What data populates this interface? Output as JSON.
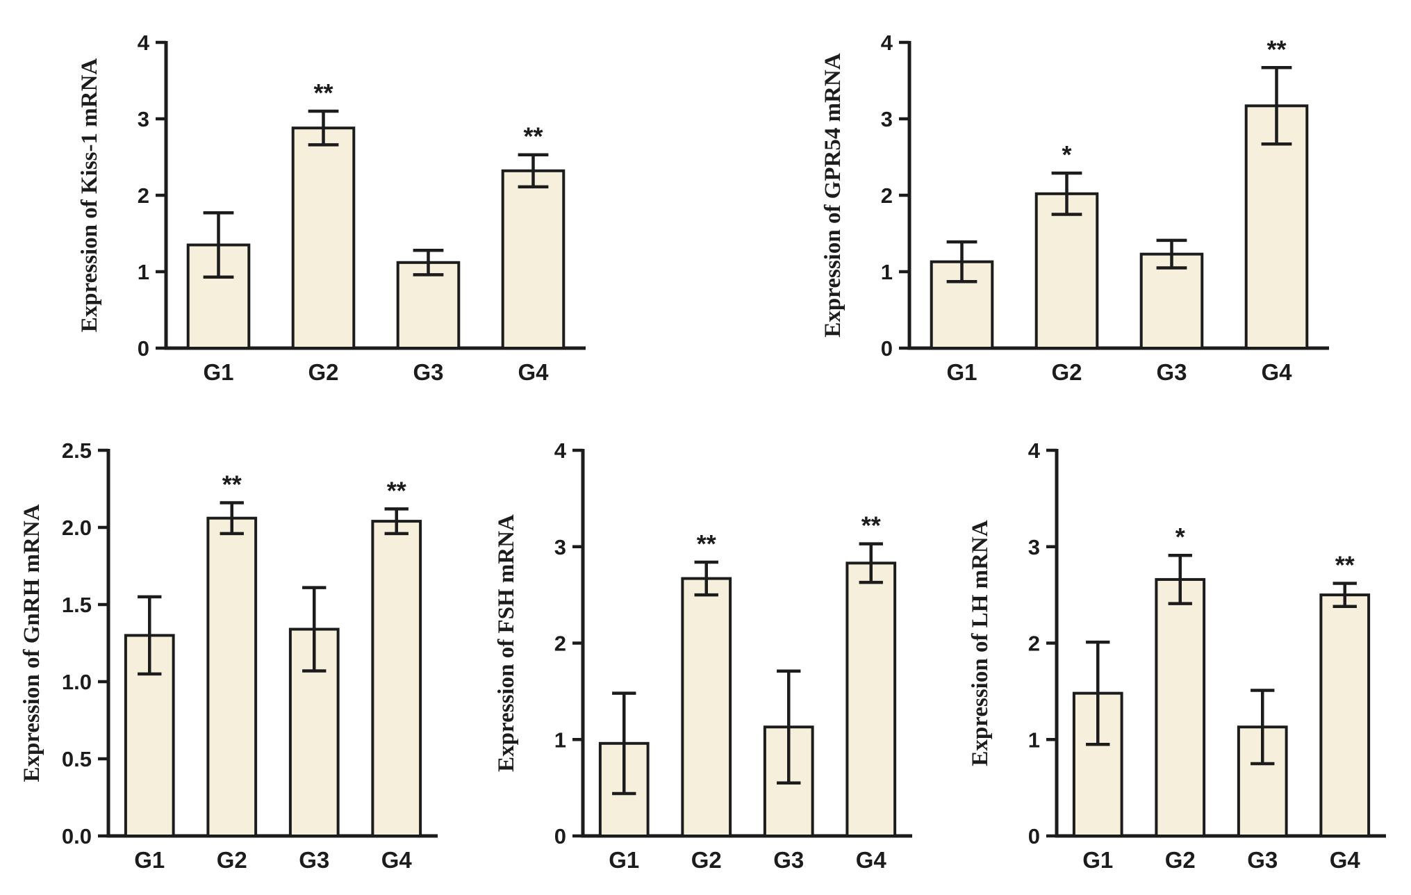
{
  "figure": {
    "description": "Five bar charts of relative mRNA expression across groups G1-G4 with SD error bars and significance markers"
  },
  "style": {
    "bar_fill": "#f6efdb",
    "bar_edge": "#1c1c1c",
    "axis_color": "#1c1c1c",
    "text_color": "#1c1c1c",
    "background": "#ffffff"
  },
  "chart_data": [
    {
      "id": "kiss1",
      "type": "bar",
      "title": "",
      "xlabel": "",
      "ylabel": "Expression of Kiss-1 mRNA",
      "categories": [
        "G1",
        "G2",
        "G3",
        "G4"
      ],
      "values": [
        1.35,
        2.88,
        1.12,
        2.32
      ],
      "errors": [
        0.42,
        0.22,
        0.16,
        0.21
      ],
      "sig": [
        "",
        "**",
        "",
        "**"
      ],
      "ylim": [
        0,
        4
      ],
      "yticks": [
        0,
        1,
        2,
        3,
        4
      ],
      "ytick_labels": [
        "0",
        "1",
        "2",
        "3",
        "4"
      ],
      "grid": false,
      "legend": "none"
    },
    {
      "id": "gpr54",
      "type": "bar",
      "title": "",
      "xlabel": "",
      "ylabel": "Expression of GPR54 mRNA",
      "categories": [
        "G1",
        "G2",
        "G3",
        "G4"
      ],
      "values": [
        1.13,
        2.02,
        1.23,
        3.17
      ],
      "errors": [
        0.26,
        0.27,
        0.18,
        0.5
      ],
      "sig": [
        "",
        "*",
        "",
        "**"
      ],
      "ylim": [
        0,
        4
      ],
      "yticks": [
        0,
        1,
        2,
        3,
        4
      ],
      "ytick_labels": [
        "0",
        "1",
        "2",
        "3",
        "4"
      ],
      "grid": false,
      "legend": "none"
    },
    {
      "id": "gnrh",
      "type": "bar",
      "title": "",
      "xlabel": "",
      "ylabel": "Expression of GnRH mRNA",
      "categories": [
        "G1",
        "G2",
        "G3",
        "G4"
      ],
      "values": [
        1.3,
        2.06,
        1.34,
        2.04
      ],
      "errors": [
        0.25,
        0.1,
        0.27,
        0.08
      ],
      "sig": [
        "",
        "**",
        "",
        "**"
      ],
      "ylim": [
        0,
        2.5
      ],
      "yticks": [
        0,
        0.5,
        1,
        1.5,
        2,
        2.5
      ],
      "ytick_labels": [
        "0.0",
        "0.5",
        "1.0",
        "1.5",
        "2.0",
        "2.5"
      ],
      "grid": false,
      "legend": "none"
    },
    {
      "id": "fsh",
      "type": "bar",
      "title": "",
      "xlabel": "",
      "ylabel": "Expression of FSH mRNA",
      "categories": [
        "G1",
        "G2",
        "G3",
        "G4"
      ],
      "values": [
        0.96,
        2.67,
        1.13,
        2.83
      ],
      "errors": [
        0.52,
        0.17,
        0.58,
        0.2
      ],
      "sig": [
        "",
        "**",
        "",
        "**"
      ],
      "ylim": [
        0,
        4
      ],
      "yticks": [
        0,
        1,
        2,
        3,
        4
      ],
      "ytick_labels": [
        "0",
        "1",
        "2",
        "3",
        "4"
      ],
      "grid": false,
      "legend": "none"
    },
    {
      "id": "lh",
      "type": "bar",
      "title": "",
      "xlabel": "",
      "ylabel": "Expression of LH mRNA",
      "categories": [
        "G1",
        "G2",
        "G3",
        "G4"
      ],
      "values": [
        1.48,
        2.66,
        1.13,
        2.5
      ],
      "errors": [
        0.53,
        0.25,
        0.38,
        0.12
      ],
      "sig": [
        "",
        "*",
        "",
        "**"
      ],
      "ylim": [
        0,
        4
      ],
      "yticks": [
        0,
        1,
        2,
        3,
        4
      ],
      "ytick_labels": [
        "0",
        "1",
        "2",
        "3",
        "4"
      ],
      "grid": false,
      "legend": "none"
    }
  ]
}
